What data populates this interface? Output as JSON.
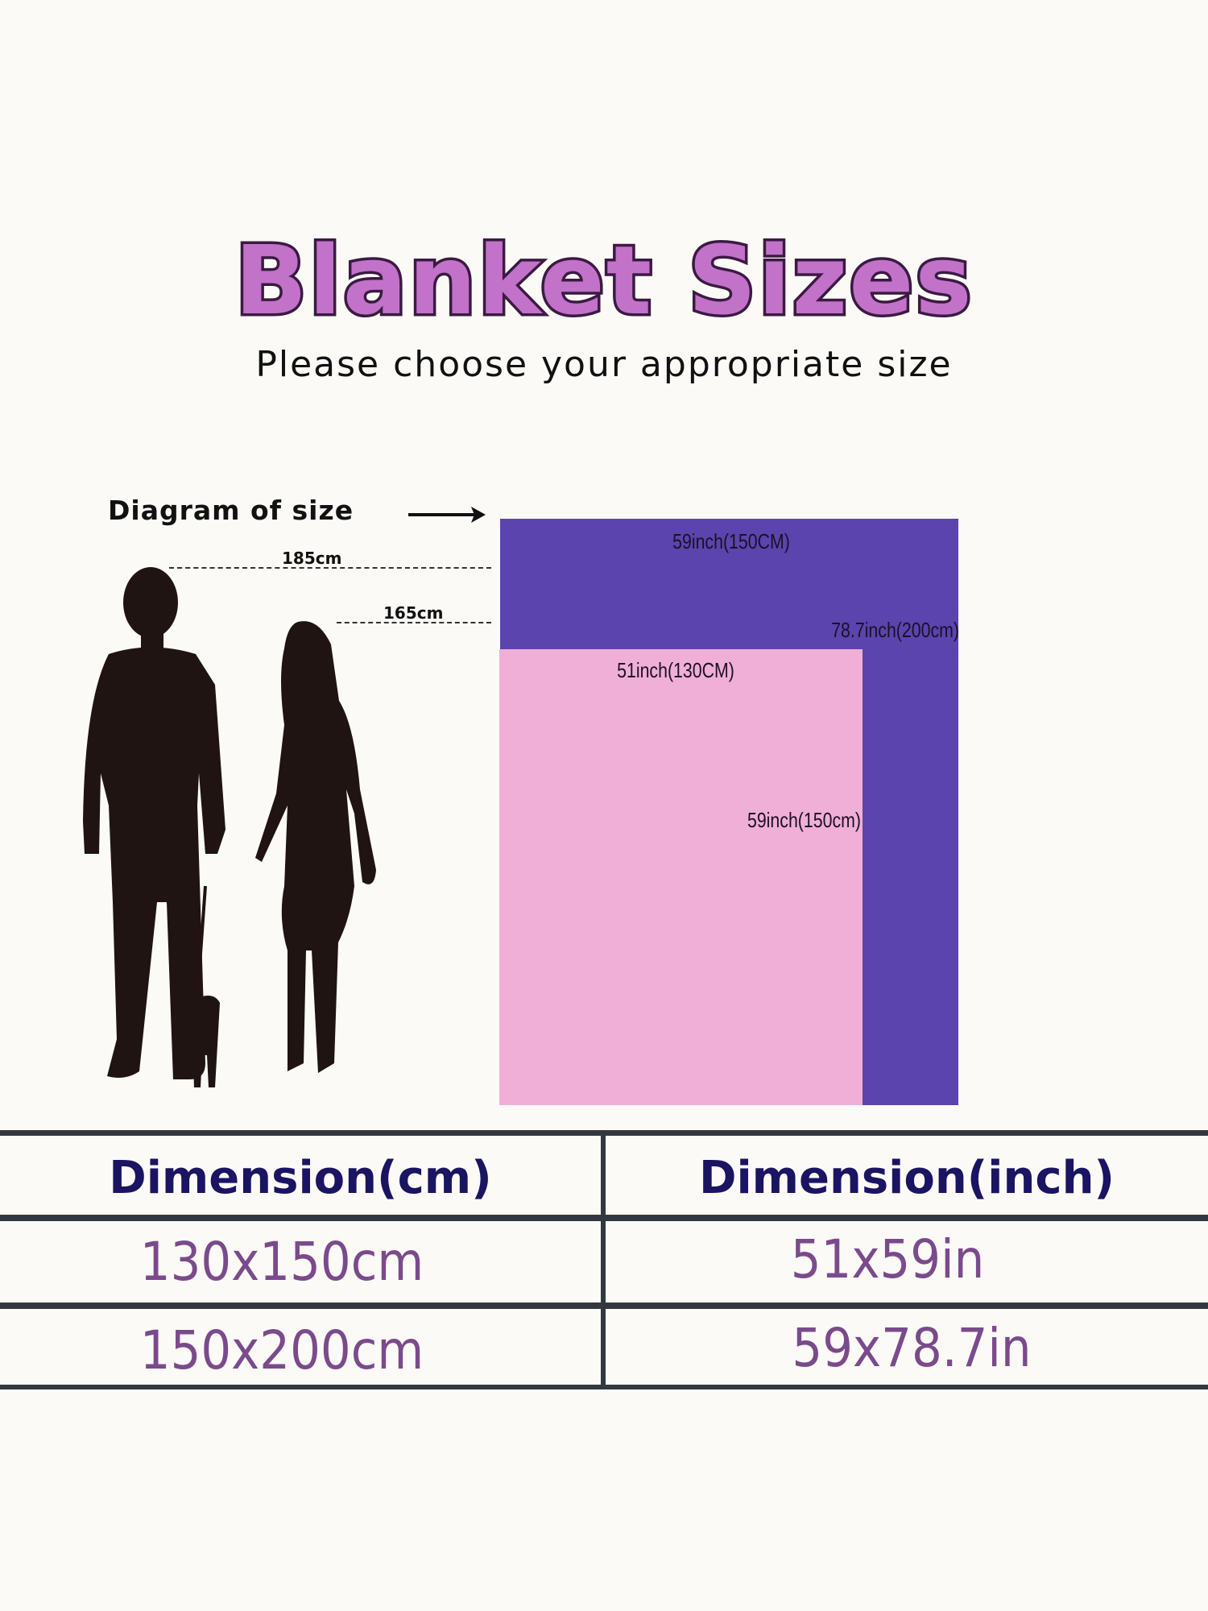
{
  "title": "Blanket Sizes",
  "subtitle": "Please choose your appropriate size",
  "diagram": {
    "label": "Diagram of size",
    "arrow_icon": "arrow-right-icon",
    "heights": {
      "man": "185cm",
      "woman": "165cm"
    },
    "large_blanket": {
      "width_label": "59inch(150CM)",
      "height_label": "78.7inch(200cm)",
      "color": "#5b44ad"
    },
    "small_blanket": {
      "width_label": "51inch(130CM)",
      "height_label": "59inch(150cm)",
      "color": "#f0afd6"
    }
  },
  "table": {
    "headers": [
      "Dimension(cm)",
      "Dimension(inch)"
    ],
    "rows": [
      [
        "130x150cm",
        "51x59in"
      ],
      [
        "150x200cm",
        "59x78.7in"
      ]
    ]
  }
}
